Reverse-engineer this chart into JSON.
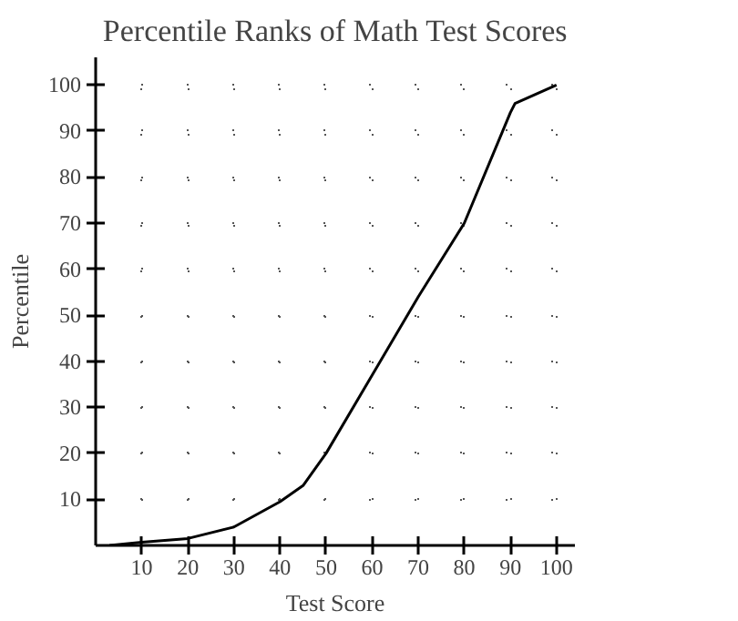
{
  "chart_data": {
    "type": "line",
    "title": "Percentile Ranks of Math Test Scores",
    "xlabel": "Test Score",
    "ylabel": "Percentile",
    "x": [
      3,
      10,
      20,
      30,
      40,
      45,
      50,
      60,
      70,
      80,
      90,
      91,
      100
    ],
    "series": [
      {
        "color": "#000000",
        "values": [
          0,
          0.7,
          1.5,
          4,
          9.5,
          13,
          20,
          37,
          54,
          70,
          94,
          96,
          100
        ]
      }
    ],
    "xlim": [
      0,
      104
    ],
    "ylim": [
      0,
      106
    ],
    "xticks": [
      10,
      20,
      30,
      40,
      50,
      60,
      70,
      80,
      90,
      100
    ],
    "yticks": [
      10,
      20,
      30,
      40,
      50,
      60,
      70,
      80,
      90,
      100
    ],
    "grid": true,
    "marker": "none",
    "line_style": "solid"
  }
}
